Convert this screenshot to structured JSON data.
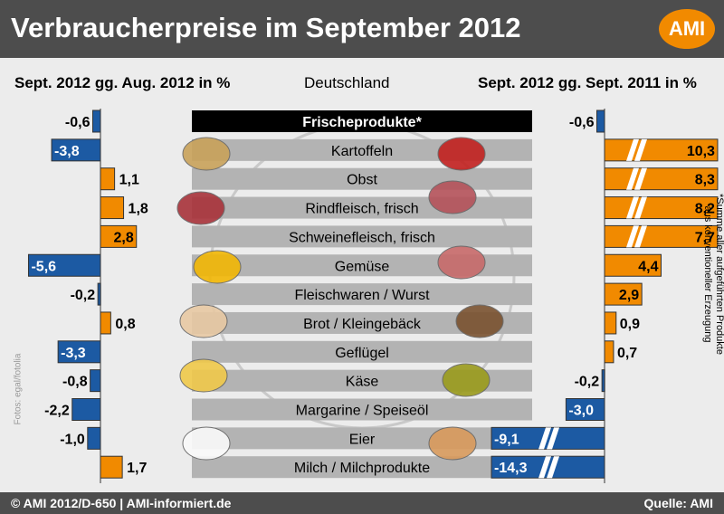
{
  "title": "Verbraucherpreise im September 2012",
  "logo": "AMI",
  "header_left": "Sept. 2012 gg. Aug. 2012 in %",
  "header_center": "Deutschland",
  "header_right": "Sept. 2012 gg. Sept. 2011 in %",
  "footnote_line1": "*Summe aller aufgeführten Produkte",
  "footnote_line2": "aus konventioneller Erzeugung",
  "photo_credit": "Fotos: egal/fotolia",
  "footer_left": "© AMI 2012/D-650 | AMI-informiert.de",
  "footer_right": "Quelle: AMI",
  "colors": {
    "positive": "#f18a00",
    "negative": "#1c5aa3",
    "header_bg": "#4d4d4d",
    "row_bg": "#b3b3b3",
    "row_header_bg": "#000000"
  },
  "chart_data": [
    {
      "type": "bar",
      "orientation": "horizontal",
      "title": "Sept. 2012 gg. Aug. 2012 in %",
      "categories": [
        "Frischeprodukte*",
        "Kartoffeln",
        "Obst",
        "Rindfleisch, frisch",
        "Schweinefleisch, frisch",
        "Gemüse",
        "Fleischwaren / Wurst",
        "Brot / Kleingebäck",
        "Geflügel",
        "Käse",
        "Margarine / Speiseöl",
        "Eier",
        "Milch / Milchprodukte"
      ],
      "values": [
        -0.6,
        -3.8,
        1.1,
        1.8,
        2.8,
        -5.6,
        -0.2,
        0.8,
        -3.3,
        -0.8,
        -2.2,
        -1.0,
        1.7
      ],
      "value_labels": [
        "-0,6",
        "-3,8",
        "1,1",
        "1,8",
        "2,8",
        "-5,6",
        "-0,2",
        "0,8",
        "-3,3",
        "-0,8",
        "-2,2",
        "-1,0",
        "1,7"
      ]
    },
    {
      "type": "bar",
      "orientation": "horizontal",
      "title": "Sept. 2012 gg. Sept. 2011 in %",
      "categories": [
        "Frischeprodukte*",
        "Kartoffeln",
        "Obst",
        "Rindfleisch, frisch",
        "Schweinefleisch, frisch",
        "Gemüse",
        "Fleischwaren / Wurst",
        "Brot / Kleingebäck",
        "Geflügel",
        "Käse",
        "Margarine / Speiseöl",
        "Eier",
        "Milch / Milchprodukte"
      ],
      "values": [
        -0.6,
        10.3,
        8.3,
        8.2,
        7.7,
        4.4,
        2.9,
        0.9,
        0.7,
        -0.2,
        -3.0,
        -9.1,
        -14.3
      ],
      "value_labels": [
        "-0,6",
        "10,3",
        "8,3",
        "8,2",
        "7,7",
        "4,4",
        "2,9",
        "0,9",
        "0,7",
        "-0,2",
        "-3,0",
        "-9,1",
        "-14,3"
      ],
      "broken_axis": true
    }
  ]
}
